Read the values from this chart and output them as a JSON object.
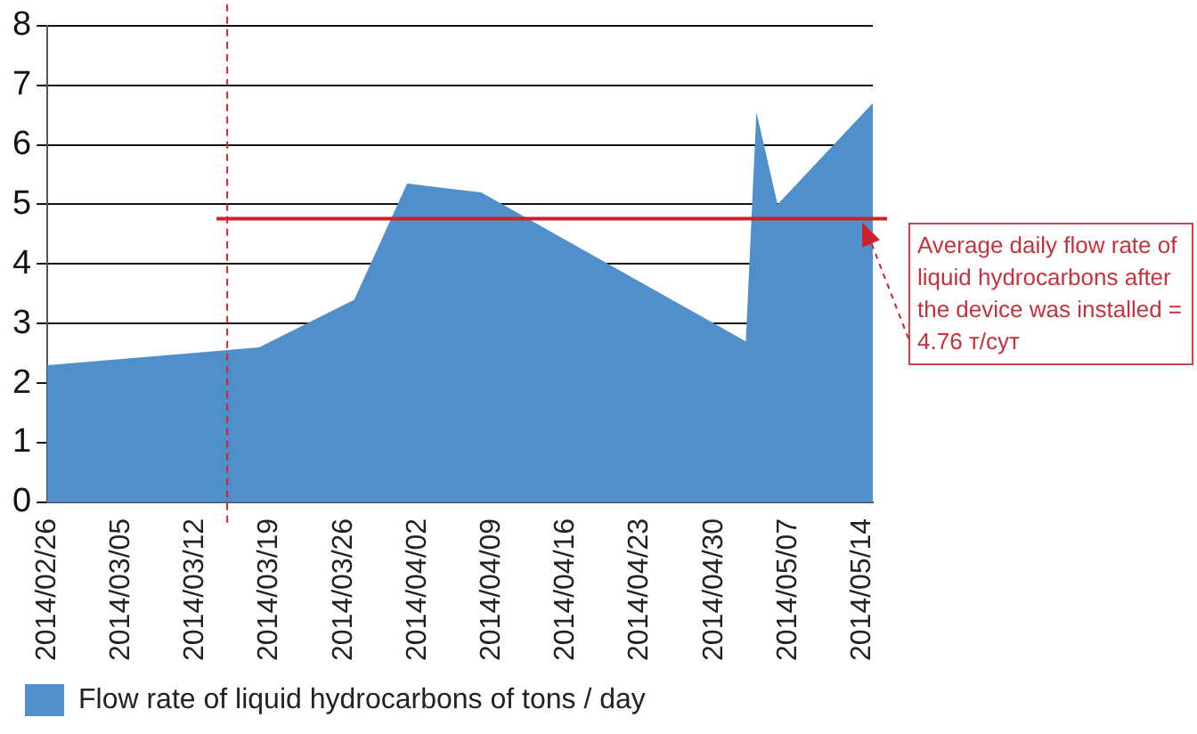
{
  "chart_data": {
    "type": "area",
    "x": [
      "2014-02-26",
      "2014-03-18",
      "2014-03-27",
      "2014-04-01",
      "2014-04-08",
      "2014-05-03",
      "2014-05-04",
      "2014-05-06",
      "2014-05-15"
    ],
    "series": [
      {
        "name": "Flow rate of liquid hydrocarbons of tons / day",
        "color": "#4f8fcc",
        "values": [
          2.3,
          2.6,
          3.4,
          5.35,
          5.2,
          2.7,
          6.55,
          5.0,
          6.7
        ]
      }
    ],
    "xlim": [
      "2014-02-26",
      "2014-05-15"
    ],
    "xticks": [
      {
        "value": "2014-02-26",
        "label": "2014/02/26"
      },
      {
        "value": "2014-03-05",
        "label": "2014/03/05"
      },
      {
        "value": "2014-03-12",
        "label": "2014/03/12"
      },
      {
        "value": "2014-03-19",
        "label": "2014/03/19"
      },
      {
        "value": "2014-03-26",
        "label": "2014/03/26"
      },
      {
        "value": "2014-04-02",
        "label": "2014/04/02"
      },
      {
        "value": "2014-04-09",
        "label": "2014/04/09"
      },
      {
        "value": "2014-04-16",
        "label": "2014/04/16"
      },
      {
        "value": "2014-04-23",
        "label": "2014/04/23"
      },
      {
        "value": "2014-04-30",
        "label": "2014/04/30"
      },
      {
        "value": "2014-05-07",
        "label": "2014/05/07"
      },
      {
        "value": "2014-05-14",
        "label": "2014/05/14"
      }
    ],
    "ylim": [
      0,
      8
    ],
    "yticks": [
      0,
      1,
      2,
      3,
      4,
      5,
      6,
      7,
      8
    ],
    "grid": "y",
    "legend": "bottom",
    "ref_lines": [
      {
        "axis": "x",
        "value": "2014-03-15",
        "label": null,
        "color": "#d0202e",
        "line_style": "dashed"
      },
      {
        "axis": "y",
        "value": 4.76,
        "label": "Average daily flow rate of liquid hydrocarbons after the device was installed = 4.76 т/сут",
        "color": "#d0202e",
        "line_style": "solid"
      }
    ]
  }
}
